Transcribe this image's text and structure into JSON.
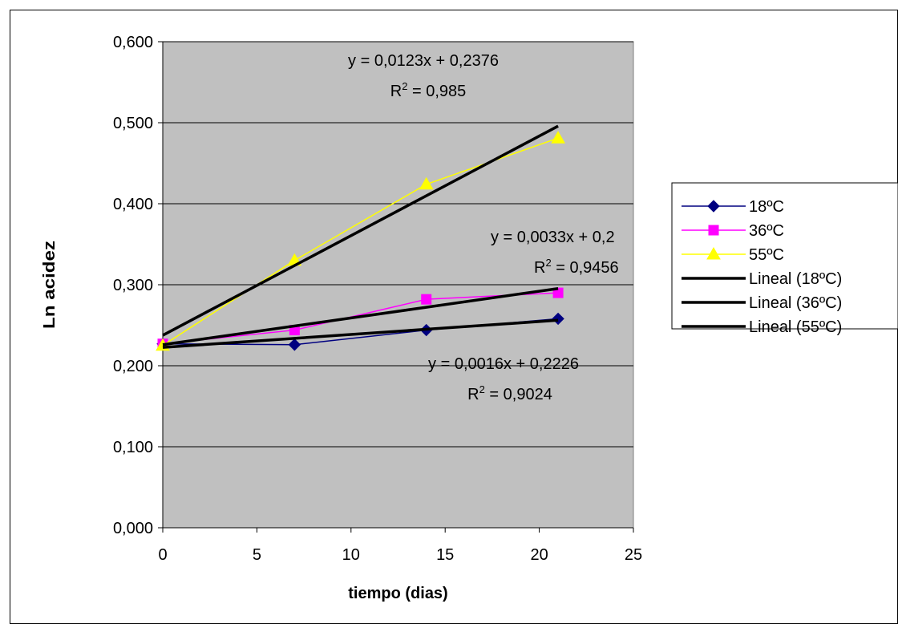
{
  "chart_data": {
    "type": "line",
    "xlabel": "tiempo (dias)",
    "ylabel": "Ln acidez",
    "xlim": [
      0,
      25
    ],
    "ylim": [
      0,
      0.6
    ],
    "xticks": [
      "0",
      "5",
      "10",
      "15",
      "20",
      "25"
    ],
    "yticks": [
      "0,000",
      "0,100",
      "0,200",
      "0,300",
      "0,400",
      "0,500",
      "0,600"
    ],
    "grid": "horizontal",
    "legend_position": "right",
    "plot_background": "#c0c0c0",
    "series": [
      {
        "name": "18ºC",
        "marker": "diamond",
        "color": "#000080",
        "x": [
          0,
          7,
          14,
          21
        ],
        "y": [
          0.227,
          0.226,
          0.244,
          0.258
        ]
      },
      {
        "name": "36ºC",
        "marker": "square",
        "color": "#ff00ff",
        "x": [
          0,
          7,
          14,
          21
        ],
        "y": [
          0.227,
          0.244,
          0.282,
          0.29
        ]
      },
      {
        "name": "55ºC",
        "marker": "triangle",
        "color": "#ffff00",
        "x": [
          0,
          7,
          14,
          21
        ],
        "y": [
          0.225,
          0.33,
          0.424,
          0.481
        ]
      }
    ],
    "trendlines": [
      {
        "name": "Lineal (18ºC)",
        "color": "#000000",
        "slope": 0.0016,
        "intercept": 0.2226,
        "x_range": [
          0,
          21
        ]
      },
      {
        "name": "Lineal (36ºC)",
        "color": "#000000",
        "slope": 0.0033,
        "intercept": 0.226,
        "x_range": [
          0,
          21
        ]
      },
      {
        "name": "Lineal (55ºC)",
        "color": "#000000",
        "slope": 0.0123,
        "intercept": 0.2376,
        "x_range": [
          0,
          21
        ]
      }
    ],
    "annotations": [
      {
        "eq": "y = 0,0123x + 0,2376",
        "r2": "= 0,985"
      },
      {
        "eq": "y = 0,0033x + 0,2",
        "r2": "= 0,9456"
      },
      {
        "eq": "y = 0,0016x + 0,2226",
        "r2": "= 0,9024"
      }
    ]
  }
}
